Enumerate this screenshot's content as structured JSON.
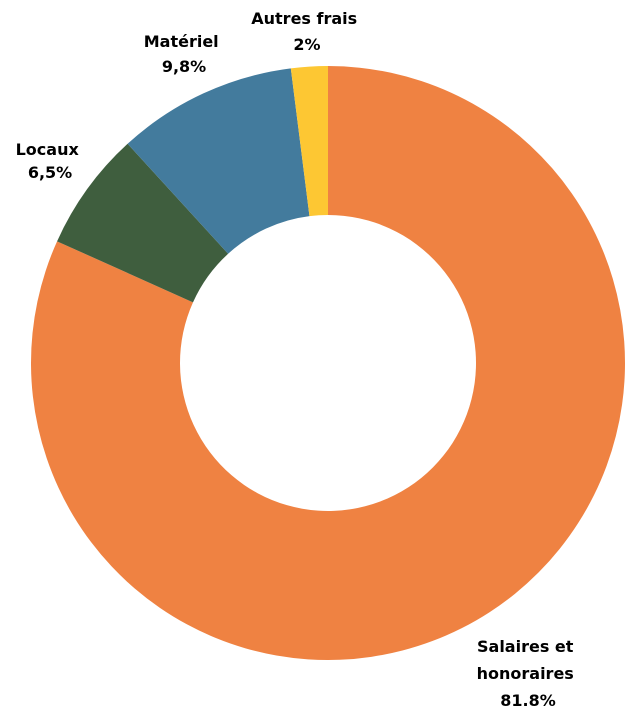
{
  "chart_data": {
    "type": "pie",
    "style": "donut",
    "categories": [
      "Salaires et honoraires",
      "Locaux",
      "Matériel",
      "Autres frais"
    ],
    "values": [
      81.8,
      6.5,
      9.8,
      2.0
    ],
    "slices": [
      {
        "name_lines": [
          "Salaires et",
          "honoraires"
        ],
        "value_label": "81.8%",
        "color": "#EF8242"
      },
      {
        "name_lines": [
          "Locaux"
        ],
        "value_label": "6,5%",
        "color": "#3F5E3E"
      },
      {
        "name_lines": [
          "Matériel"
        ],
        "value_label": "9,8%",
        "color": "#437B9D"
      },
      {
        "name_lines": [
          "Autres frais"
        ],
        "value_label": "2%",
        "color": "#FDC733"
      }
    ],
    "legend": "none",
    "title": ""
  }
}
